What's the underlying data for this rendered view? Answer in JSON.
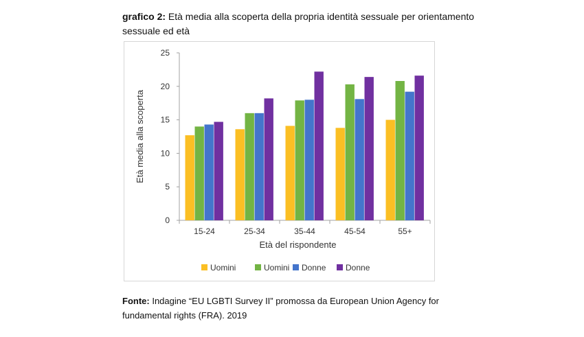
{
  "header": {
    "label": "grafico 2:",
    "title": " Età media alla scoperta della propria identità sessuale per orientamento sessuale ed età"
  },
  "footer": {
    "label": "Fonte:",
    "text": " Indagine “EU LGBTI Survey II” promossa da European Union Agency for fundamental rights (FRA). 2019"
  },
  "chart_data": {
    "type": "bar",
    "title": "grafico 2: Età media alla scoperta della propria identità sessuale per orientamento sessuale ed età",
    "xlabel": "Età del rispondente",
    "ylabel": "Età media alla scoperta",
    "ylim": [
      0,
      25
    ],
    "yticks": [
      0,
      5,
      10,
      15,
      20,
      25
    ],
    "grid": false,
    "legend_position": "bottom",
    "categories": [
      "15-24",
      "25-34",
      "35-44",
      "45-54",
      "55+"
    ],
    "series": [
      {
        "name": "Uomini",
        "color": "#fbbf24",
        "values": [
          12.7,
          13.6,
          14.1,
          13.8,
          15.0
        ]
      },
      {
        "name": "Uomini",
        "color": "#73b444",
        "values": [
          14.0,
          16.0,
          17.9,
          20.3,
          20.8
        ]
      },
      {
        "name": "Donne",
        "color": "#4475cc",
        "values": [
          14.3,
          16.0,
          18.0,
          18.1,
          19.2
        ]
      },
      {
        "name": "Donne",
        "color": "#7030a0",
        "values": [
          14.7,
          18.2,
          22.2,
          21.4,
          21.6
        ]
      }
    ]
  }
}
